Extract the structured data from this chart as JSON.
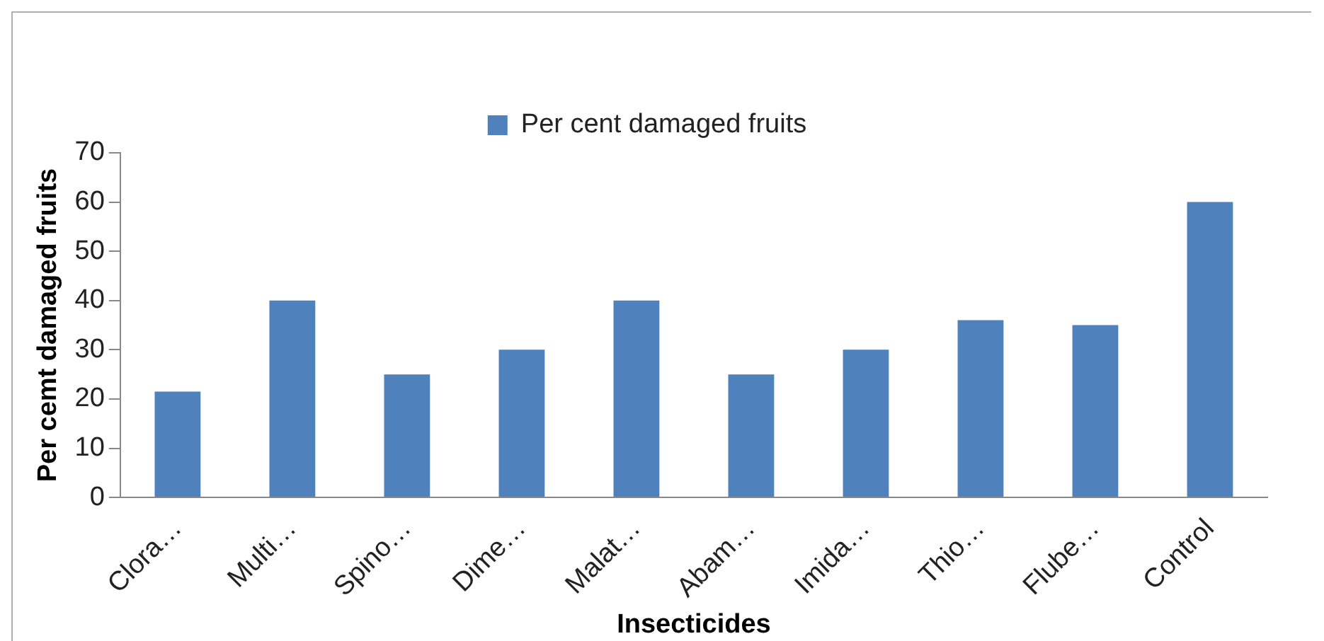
{
  "chart_data": {
    "type": "bar",
    "xlabel": "Insecticides",
    "ylabel": "Per cemt damaged fruits",
    "categories": [
      "Clora…",
      "Multi…",
      "Spino…",
      "Dime…",
      "Malat…",
      "Abam…",
      "Imida…",
      "Thio…",
      "Flube…",
      "Control"
    ],
    "series": [
      {
        "name": "Per cent damaged fruits",
        "color": "#4f81bd",
        "values": [
          21.5,
          40,
          25,
          30,
          40,
          25,
          30,
          36,
          35,
          60
        ]
      }
    ],
    "ylim": [
      0,
      70
    ],
    "yticks": [
      0,
      10,
      20,
      30,
      40,
      50,
      60,
      70
    ],
    "grid": false,
    "legend": "top"
  }
}
